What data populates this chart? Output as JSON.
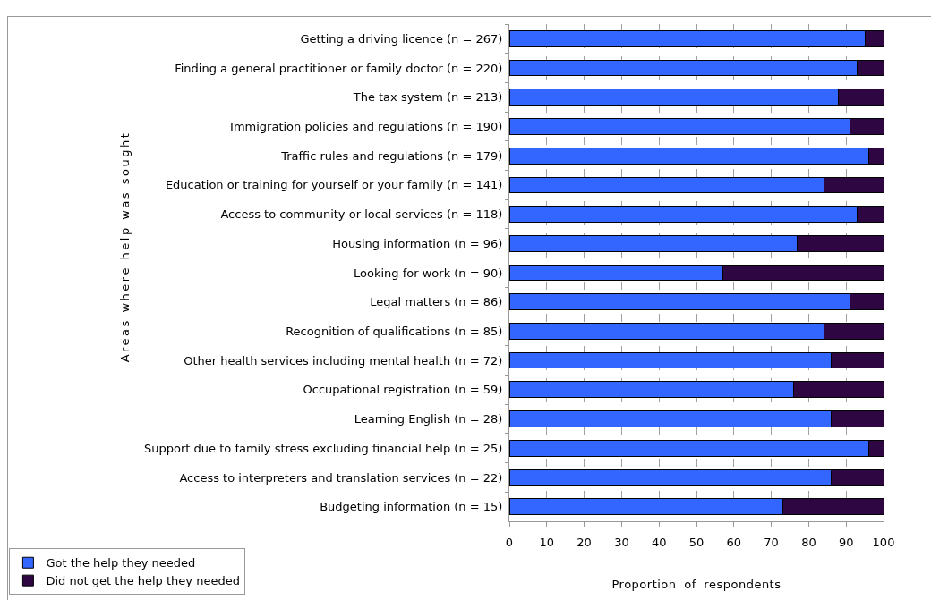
{
  "chart_data": {
    "type": "bar",
    "orientation": "horizontal",
    "stacked": true,
    "ylabel": "Areas where help was sought",
    "xlabel": "Proportion of respondents",
    "categories": [
      "Getting a driving licence (n = 267)",
      "Finding a general practitioner or family doctor (n = 220)",
      "The tax system (n = 213)",
      "Immigration policies and regulations (n = 190)",
      "Traffic rules and regulations (n = 179)",
      "Education or training for yourself or your family (n = 141)",
      "Access to community or local services (n = 118)",
      "Housing information (n = 96)",
      "Looking for work (n = 90)",
      "Legal matters (n = 86)",
      "Recognition of qualifications (n = 85)",
      "Other health services including mental health (n = 72)",
      "Occupational registration (n = 59)",
      "Learning English (n = 28)",
      "Support due to family stress excluding financial help (n = 25)",
      "Access to interpreters and translation services (n = 22)",
      "Budgeting information (n = 15)"
    ],
    "series": [
      {
        "name": "Got the help they needed",
        "color": "#3366ff",
        "values": [
          95,
          93,
          88,
          91,
          96,
          84,
          93,
          77,
          57,
          91,
          84,
          86,
          76,
          86,
          96,
          86,
          73
        ]
      },
      {
        "name": "Did not get the help they needed",
        "color": "#2e0642",
        "values": [
          5,
          7,
          12,
          9,
          4,
          16,
          7,
          23,
          43,
          9,
          16,
          14,
          24,
          14,
          4,
          14,
          27
        ]
      }
    ],
    "xlim": [
      0,
      100
    ],
    "xticks": [
      0,
      10,
      20,
      30,
      40,
      50,
      60,
      70,
      80,
      90,
      100
    ],
    "grid": "x",
    "legend": "bottom left"
  }
}
